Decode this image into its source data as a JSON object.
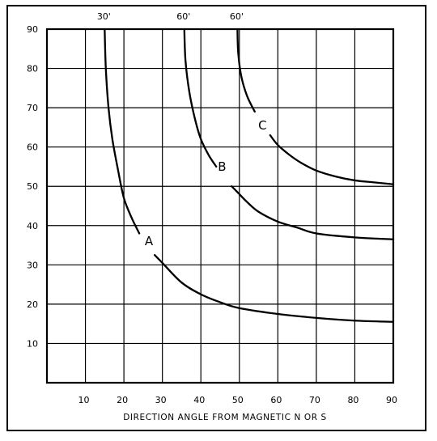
{
  "chart_data": {
    "type": "line",
    "title": "",
    "xlabel": "DIRECTION ANGLE FROM MAGNETIC  N OR S",
    "ylabel": "",
    "xlim": [
      0,
      90
    ],
    "ylim": [
      0,
      90
    ],
    "x_ticks": [
      "10",
      "20",
      "30",
      "40",
      "50",
      "60",
      "70",
      "80",
      "90"
    ],
    "y_ticks": [
      "10",
      "20",
      "30",
      "40",
      "50",
      "60",
      "70",
      "80",
      "90"
    ],
    "grid": true,
    "series": [
      {
        "name": "A",
        "top_label": "30'",
        "x": [
          15,
          15.3,
          16,
          17,
          18.5,
          20,
          22,
          24,
          26,
          28,
          30,
          35,
          40,
          45,
          50,
          60,
          70,
          80,
          90
        ],
        "y": [
          90,
          80,
          70,
          62,
          54,
          47,
          42,
          38,
          35,
          32.5,
          30.5,
          25.5,
          22.5,
          20.5,
          19,
          17.5,
          16.5,
          15.8,
          15.5
        ]
      },
      {
        "name": "B",
        "top_label": "60'",
        "x": [
          35.7,
          36,
          37,
          38.5,
          40,
          42,
          44,
          46,
          48,
          50,
          52,
          55,
          60,
          65,
          70,
          80,
          90
        ],
        "y": [
          90,
          82,
          74,
          67,
          62,
          58,
          55,
          52.5,
          50,
          48,
          46,
          43.5,
          41,
          39.5,
          38,
          37,
          36.5
        ]
      },
      {
        "name": "C",
        "top_label": "60'",
        "x": [
          49.5,
          49.7,
          50.5,
          52,
          54,
          56,
          58,
          60,
          63,
          66,
          70,
          75,
          80,
          85,
          90
        ],
        "y": [
          90,
          84,
          78,
          73,
          69,
          66,
          63,
          60.5,
          58,
          56,
          54,
          52.5,
          51.5,
          51,
          50.5
        ]
      }
    ]
  }
}
